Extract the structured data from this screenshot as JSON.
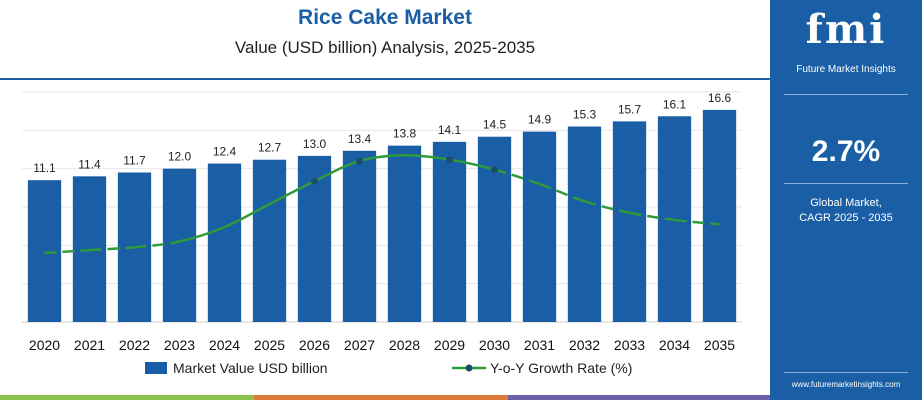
{
  "header": {
    "title": "Rice Cake Market",
    "subtitle": "Value (USD billion) Analysis, 2025-2035"
  },
  "sidebar": {
    "logo": "fmi",
    "logo_tagline": "Future Market Insights",
    "cagr_value": "2.7%",
    "cagr_label_line1": "Global Market,",
    "cagr_label_line2": "CAGR 2025 - 2035",
    "website": "www.futuremarketinsights.com"
  },
  "colors": {
    "bar": "#1a5fa5",
    "line": "#2e9a3a",
    "marker": "#1a4f6e",
    "brand": "#1a5fa5"
  },
  "chart_data": {
    "type": "bar",
    "categories": [
      "2020",
      "2021",
      "2022",
      "2023",
      "2024",
      "2025",
      "2026",
      "2027",
      "2028",
      "2029",
      "2030",
      "2031",
      "2032",
      "2033",
      "2034",
      "2035"
    ],
    "series": [
      {
        "name": "Market Value USD billion",
        "type": "bar",
        "values": [
          11.1,
          11.4,
          11.7,
          12.0,
          12.4,
          12.7,
          13.0,
          13.4,
          13.8,
          14.1,
          14.5,
          14.9,
          15.3,
          15.7,
          16.1,
          16.6
        ],
        "labels": [
          "11.1",
          "11.4",
          "11.7",
          "12.0",
          "12.4",
          "12.7",
          "13.0",
          "13.4",
          "13.8",
          "14.1",
          "14.5",
          "14.9",
          "15.3",
          "15.7",
          "16.1",
          "16.6"
        ]
      },
      {
        "name": "Y-o-Y Growth Rate (%)",
        "type": "line",
        "values": [
          2.4,
          2.5,
          2.6,
          2.8,
          3.3,
          4.1,
          4.9,
          5.6,
          5.8,
          5.65,
          5.3,
          4.8,
          4.2,
          3.8,
          3.55,
          3.4
        ],
        "markers_at": [
          "2026",
          "2027",
          "2029",
          "2030"
        ],
        "dashed_ranges": [
          [
            "2020",
            "2023"
          ],
          [
            "2030",
            "2035"
          ]
        ]
      }
    ],
    "ylim_bar": [
      0,
      18
    ],
    "ylim_line": [
      0,
      8
    ],
    "grid": true,
    "legend_position": "bottom"
  }
}
